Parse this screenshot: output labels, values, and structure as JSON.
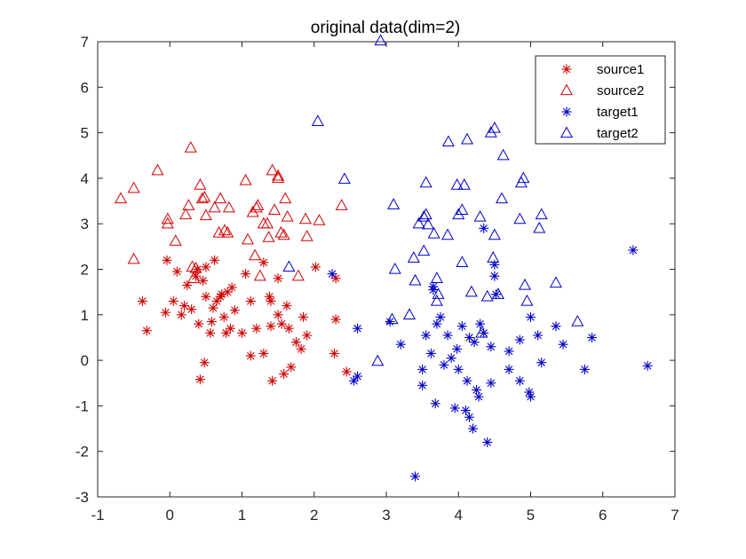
{
  "chart_data": {
    "type": "scatter",
    "title": "original data(dim=2)",
    "xlabel": "",
    "ylabel": "",
    "xlim": [
      -1,
      7
    ],
    "ylim": [
      -3,
      7
    ],
    "xticks": [
      "-1",
      "0",
      "1",
      "2",
      "3",
      "4",
      "5",
      "6",
      "7"
    ],
    "yticks": [
      "-3",
      "-2",
      "-1",
      "0",
      "1",
      "2",
      "3",
      "4",
      "5",
      "6",
      "7"
    ],
    "grid": false,
    "legend_position": "top-right",
    "series": [
      {
        "name": "source1",
        "marker": "star",
        "color": "#d40000",
        "points": [
          [
            -0.38,
            1.3
          ],
          [
            -0.32,
            0.65
          ],
          [
            -0.04,
            2.2
          ],
          [
            -0.06,
            1.05
          ],
          [
            0.05,
            1.3
          ],
          [
            0.1,
            1.95
          ],
          [
            0.16,
            1.0
          ],
          [
            0.2,
            1.2
          ],
          [
            0.24,
            1.65
          ],
          [
            0.3,
            1.12
          ],
          [
            0.36,
            1.85
          ],
          [
            0.38,
            2.0
          ],
          [
            0.4,
            0.8
          ],
          [
            0.42,
            -0.42
          ],
          [
            0.46,
            1.75
          ],
          [
            0.48,
            -0.05
          ],
          [
            0.5,
            2.05
          ],
          [
            0.5,
            1.4
          ],
          [
            0.56,
            0.6
          ],
          [
            0.58,
            0.85
          ],
          [
            0.6,
            1.15
          ],
          [
            0.62,
            2.2
          ],
          [
            0.65,
            1.3
          ],
          [
            0.7,
            1.4
          ],
          [
            0.72,
            1.45
          ],
          [
            0.75,
            0.95
          ],
          [
            0.78,
            0.6
          ],
          [
            0.8,
            1.5
          ],
          [
            0.84,
            0.7
          ],
          [
            0.86,
            1.6
          ],
          [
            0.9,
            1.1
          ],
          [
            1.0,
            0.6
          ],
          [
            1.05,
            1.9
          ],
          [
            1.12,
            1.3
          ],
          [
            1.12,
            0.1
          ],
          [
            1.2,
            0.7
          ],
          [
            1.3,
            0.15
          ],
          [
            1.3,
            2.15
          ],
          [
            1.38,
            1.4
          ],
          [
            1.4,
            1.3
          ],
          [
            1.4,
            0.75
          ],
          [
            1.42,
            -0.45
          ],
          [
            1.5,
            1.8
          ],
          [
            1.5,
            1.0
          ],
          [
            1.55,
            0.8
          ],
          [
            1.58,
            -0.3
          ],
          [
            1.62,
            1.2
          ],
          [
            1.65,
            0.7
          ],
          [
            1.68,
            -0.15
          ],
          [
            1.75,
            0.4
          ],
          [
            1.82,
            0.25
          ],
          [
            1.85,
            0.95
          ],
          [
            1.9,
            0.55
          ],
          [
            2.02,
            2.05
          ],
          [
            2.3,
            1.8
          ],
          [
            2.3,
            0.9
          ],
          [
            2.28,
            0.15
          ],
          [
            2.45,
            -0.25
          ]
        ]
      },
      {
        "name": "source2",
        "marker": "triangle",
        "color": "#d40000",
        "points": [
          [
            -0.68,
            3.55
          ],
          [
            -0.5,
            3.78
          ],
          [
            -0.5,
            2.22
          ],
          [
            -0.17,
            4.17
          ],
          [
            -0.03,
            3.1
          ],
          [
            -0.03,
            3.0
          ],
          [
            0.08,
            2.62
          ],
          [
            0.22,
            3.2
          ],
          [
            0.26,
            3.4
          ],
          [
            0.29,
            4.67
          ],
          [
            0.31,
            2.05
          ],
          [
            0.33,
            1.8
          ],
          [
            0.36,
            2.02
          ],
          [
            0.42,
            3.85
          ],
          [
            0.45,
            3.55
          ],
          [
            0.48,
            3.58
          ],
          [
            0.5,
            3.18
          ],
          [
            0.62,
            3.35
          ],
          [
            0.68,
            2.8
          ],
          [
            0.7,
            3.55
          ],
          [
            0.76,
            2.85
          ],
          [
            0.8,
            2.8
          ],
          [
            0.82,
            3.35
          ],
          [
            1.05,
            3.95
          ],
          [
            1.08,
            2.65
          ],
          [
            1.15,
            3.25
          ],
          [
            1.2,
            3.35
          ],
          [
            1.18,
            2.3
          ],
          [
            1.22,
            3.4
          ],
          [
            1.25,
            1.85
          ],
          [
            1.3,
            3.0
          ],
          [
            1.35,
            3.0
          ],
          [
            1.37,
            2.7
          ],
          [
            1.42,
            4.17
          ],
          [
            1.45,
            3.3
          ],
          [
            1.5,
            4.0
          ],
          [
            1.5,
            4.05
          ],
          [
            1.54,
            2.8
          ],
          [
            1.58,
            2.75
          ],
          [
            1.6,
            3.55
          ],
          [
            1.63,
            3.15
          ],
          [
            1.78,
            1.85
          ],
          [
            1.9,
            2.72
          ],
          [
            1.88,
            3.1
          ],
          [
            2.07,
            3.07
          ],
          [
            2.38,
            3.4
          ]
        ]
      },
      {
        "name": "target1",
        "marker": "star",
        "color": "#0000cc",
        "points": [
          [
            2.25,
            1.9
          ],
          [
            2.55,
            -0.45
          ],
          [
            2.6,
            -0.35
          ],
          [
            2.6,
            0.7
          ],
          [
            3.05,
            0.85
          ],
          [
            3.2,
            0.35
          ],
          [
            3.4,
            -2.55
          ],
          [
            3.5,
            -0.2
          ],
          [
            3.5,
            -0.55
          ],
          [
            3.55,
            0.55
          ],
          [
            3.65,
            1.62
          ],
          [
            3.65,
            1.55
          ],
          [
            3.62,
            0.15
          ],
          [
            3.68,
            -0.95
          ],
          [
            3.7,
            0.8
          ],
          [
            3.75,
            0.95
          ],
          [
            3.8,
            -0.1
          ],
          [
            3.85,
            0.55
          ],
          [
            3.9,
            0.05
          ],
          [
            3.95,
            -1.05
          ],
          [
            3.98,
            0.25
          ],
          [
            4.0,
            -0.2
          ],
          [
            4.05,
            0.75
          ],
          [
            4.1,
            -1.1
          ],
          [
            4.12,
            -0.45
          ],
          [
            4.15,
            0.5
          ],
          [
            4.15,
            -1.25
          ],
          [
            4.2,
            -1.5
          ],
          [
            4.22,
            0.4
          ],
          [
            4.25,
            -0.65
          ],
          [
            4.28,
            -0.8
          ],
          [
            4.3,
            0.8
          ],
          [
            4.35,
            2.9
          ],
          [
            4.35,
            0.6
          ],
          [
            4.4,
            -1.8
          ],
          [
            4.45,
            0.3
          ],
          [
            4.45,
            -0.5
          ],
          [
            4.5,
            2.1
          ],
          [
            4.5,
            1.85
          ],
          [
            4.52,
            1.45
          ],
          [
            4.7,
            -0.2
          ],
          [
            4.7,
            0.2
          ],
          [
            4.85,
            0.45
          ],
          [
            4.85,
            -0.45
          ],
          [
            4.98,
            -0.7
          ],
          [
            5.0,
            0.95
          ],
          [
            5.0,
            -0.8
          ],
          [
            5.1,
            0.55
          ],
          [
            5.15,
            -0.05
          ],
          [
            5.35,
            0.75
          ],
          [
            5.45,
            0.35
          ],
          [
            5.75,
            -0.2
          ],
          [
            5.85,
            0.5
          ],
          [
            6.42,
            2.42
          ],
          [
            6.62,
            -0.12
          ]
        ]
      },
      {
        "name": "target2",
        "marker": "triangle",
        "color": "#0000cc",
        "points": [
          [
            1.65,
            2.05
          ],
          [
            2.05,
            5.25
          ],
          [
            2.42,
            3.98
          ],
          [
            2.88,
            -0.02
          ],
          [
            2.92,
            7.02
          ],
          [
            3.08,
            0.9
          ],
          [
            3.1,
            3.42
          ],
          [
            3.12,
            2.0
          ],
          [
            3.32,
            1.0
          ],
          [
            3.38,
            2.25
          ],
          [
            3.4,
            1.75
          ],
          [
            3.45,
            3.0
          ],
          [
            3.52,
            2.4
          ],
          [
            3.52,
            3.15
          ],
          [
            3.55,
            3.9
          ],
          [
            3.55,
            3.2
          ],
          [
            3.58,
            2.98
          ],
          [
            3.66,
            2.78
          ],
          [
            3.7,
            1.8
          ],
          [
            3.72,
            1.45
          ],
          [
            3.7,
            1.3
          ],
          [
            3.85,
            2.75
          ],
          [
            3.86,
            4.8
          ],
          [
            3.98,
            3.85
          ],
          [
            4.0,
            3.2
          ],
          [
            4.05,
            3.3
          ],
          [
            4.05,
            2.15
          ],
          [
            4.08,
            3.85
          ],
          [
            4.12,
            4.85
          ],
          [
            4.18,
            1.5
          ],
          [
            4.3,
            3.15
          ],
          [
            4.32,
            0.6
          ],
          [
            4.4,
            1.4
          ],
          [
            4.45,
            5.0
          ],
          [
            4.48,
            2.25
          ],
          [
            4.5,
            5.1
          ],
          [
            4.5,
            2.75
          ],
          [
            4.55,
            1.45
          ],
          [
            4.6,
            3.55
          ],
          [
            4.62,
            4.5
          ],
          [
            4.85,
            3.1
          ],
          [
            4.87,
            3.9
          ],
          [
            4.9,
            4.0
          ],
          [
            4.92,
            1.65
          ],
          [
            4.95,
            1.3
          ],
          [
            5.12,
            2.9
          ],
          [
            5.15,
            3.2
          ],
          [
            5.35,
            1.7
          ],
          [
            5.65,
            0.85
          ]
        ]
      }
    ]
  }
}
